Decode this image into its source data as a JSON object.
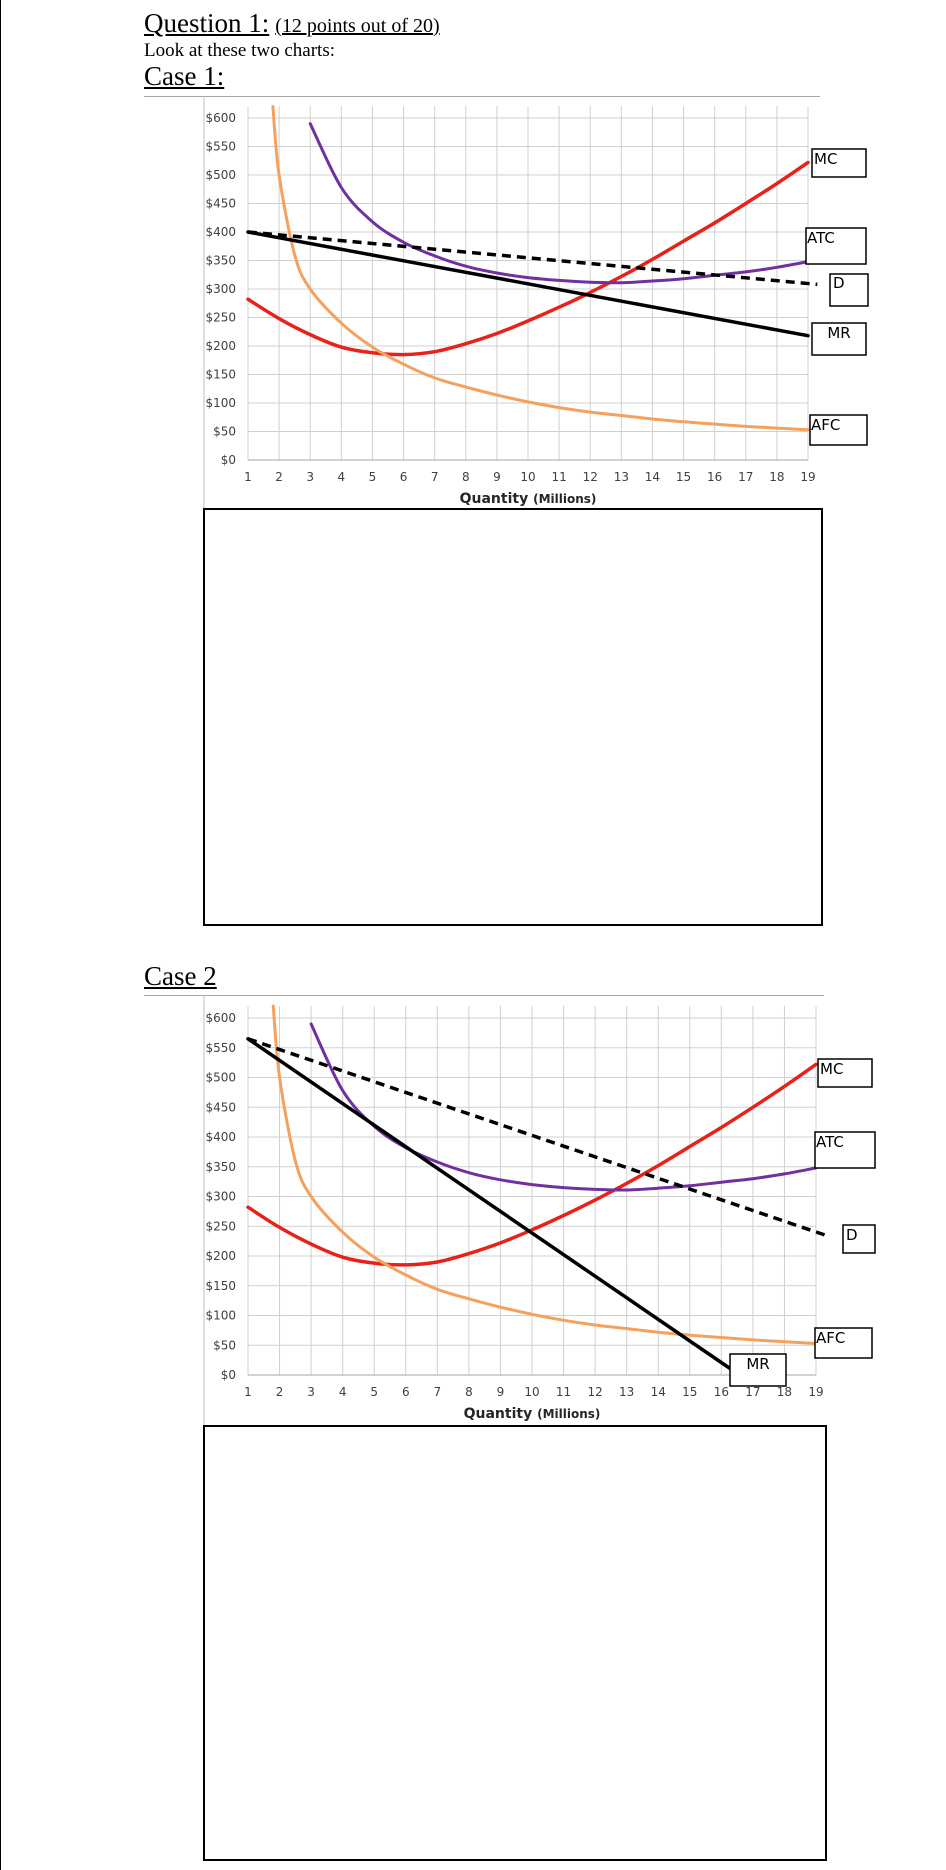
{
  "page": {
    "question_title": "Question 1:",
    "question_points": "(12 points out of 20)",
    "instruction": "Look at these two charts:",
    "case1_title": "Case 1:",
    "case2_title": "Case 2"
  },
  "colors": {
    "MC": "#e8211a",
    "ATC": "#7030a0",
    "AFC": "#f4a15d",
    "D": "#000000",
    "MR": "#000000",
    "grid": "#d0d0d0"
  },
  "chart_data": [
    {
      "type": "line",
      "title": "",
      "xlabel": "Quantity",
      "xlabel_unit": "(Millions)",
      "ylabel": "",
      "xlim": [
        1,
        19
      ],
      "ylim": [
        0,
        600
      ],
      "x_ticks": [
        "1",
        "2",
        "3",
        "4",
        "5",
        "6",
        "7",
        "8",
        "9",
        "10",
        "11",
        "12",
        "13",
        "14",
        "15",
        "16",
        "17",
        "18",
        "19"
      ],
      "y_ticks": [
        "$0",
        "$50",
        "$100",
        "$150",
        "$200",
        "$250",
        "$300",
        "$350",
        "$400",
        "$450",
        "$500",
        "$550",
        "$600"
      ],
      "grid": true,
      "series": [
        {
          "name": "MC",
          "style": "solid",
          "x": [
            1,
            2,
            3,
            4,
            5,
            6,
            7,
            8,
            9,
            10,
            11,
            12,
            13,
            14,
            15,
            16,
            17,
            18,
            19
          ],
          "y": [
            282,
            248,
            220,
            198,
            188,
            185,
            190,
            204,
            222,
            244,
            268,
            294,
            322,
            352,
            384,
            416,
            450,
            485,
            522
          ]
        },
        {
          "name": "ATC",
          "style": "solid",
          "x": [
            3,
            4,
            5,
            6,
            7,
            8,
            9,
            10,
            11,
            12,
            13,
            14,
            15,
            16,
            17,
            18,
            19
          ],
          "y": [
            590,
            478,
            418,
            382,
            358,
            340,
            328,
            320,
            315,
            312,
            311,
            314,
            318,
            324,
            330,
            338,
            348
          ]
        },
        {
          "name": "AFC",
          "style": "solid",
          "x": [
            1.8,
            2,
            2.5,
            3,
            4,
            5,
            6,
            7,
            8,
            9,
            10,
            11,
            12,
            13,
            14,
            15,
            16,
            17,
            18,
            19
          ],
          "y": [
            620,
            500,
            360,
            300,
            240,
            198,
            168,
            144,
            128,
            114,
            102,
            92,
            84,
            78,
            72,
            67,
            63,
            59,
            56,
            53
          ]
        },
        {
          "name": "D",
          "style": "dashed",
          "x": [
            1,
            19.3
          ],
          "y": [
            400,
            308
          ]
        },
        {
          "name": "MR",
          "style": "solid",
          "x": [
            1,
            19
          ],
          "y": [
            400,
            218
          ]
        }
      ]
    },
    {
      "type": "line",
      "title": "",
      "xlabel": "Quantity",
      "xlabel_unit": "(Millions)",
      "ylabel": "",
      "xlim": [
        1,
        19
      ],
      "ylim": [
        0,
        600
      ],
      "x_ticks": [
        "1",
        "2",
        "3",
        "4",
        "5",
        "6",
        "7",
        "8",
        "9",
        "10",
        "11",
        "12",
        "13",
        "14",
        "15",
        "16",
        "17",
        "18",
        "19"
      ],
      "y_ticks": [
        "$0",
        "$50",
        "$100",
        "$150",
        "$200",
        "$250",
        "$300",
        "$350",
        "$400",
        "$450",
        "$500",
        "$550",
        "$600"
      ],
      "grid": true,
      "series": [
        {
          "name": "MC",
          "style": "solid",
          "x": [
            1,
            2,
            3,
            4,
            5,
            6,
            7,
            8,
            9,
            10,
            11,
            12,
            13,
            14,
            15,
            16,
            17,
            18,
            19
          ],
          "y": [
            282,
            248,
            220,
            198,
            188,
            185,
            190,
            204,
            222,
            244,
            268,
            294,
            322,
            352,
            384,
            416,
            450,
            485,
            522
          ]
        },
        {
          "name": "ATC",
          "style": "solid",
          "x": [
            3,
            4,
            5,
            6,
            7,
            8,
            9,
            10,
            11,
            12,
            13,
            14,
            15,
            16,
            17,
            18,
            19
          ],
          "y": [
            590,
            478,
            418,
            382,
            358,
            340,
            328,
            320,
            315,
            312,
            311,
            314,
            318,
            324,
            330,
            338,
            348
          ]
        },
        {
          "name": "AFC",
          "style": "solid",
          "x": [
            1.8,
            2,
            2.5,
            3,
            4,
            5,
            6,
            7,
            8,
            9,
            10,
            11,
            12,
            13,
            14,
            15,
            16,
            17,
            18,
            19
          ],
          "y": [
            620,
            500,
            360,
            300,
            240,
            198,
            168,
            144,
            128,
            114,
            102,
            92,
            84,
            78,
            72,
            67,
            63,
            59,
            56,
            53
          ]
        },
        {
          "name": "D",
          "style": "dashed",
          "x": [
            1,
            19.3
          ],
          "y": [
            565,
            235
          ]
        },
        {
          "name": "MR",
          "style": "solid",
          "x": [
            1,
            16.3
          ],
          "y": [
            565,
            10
          ]
        }
      ]
    }
  ]
}
